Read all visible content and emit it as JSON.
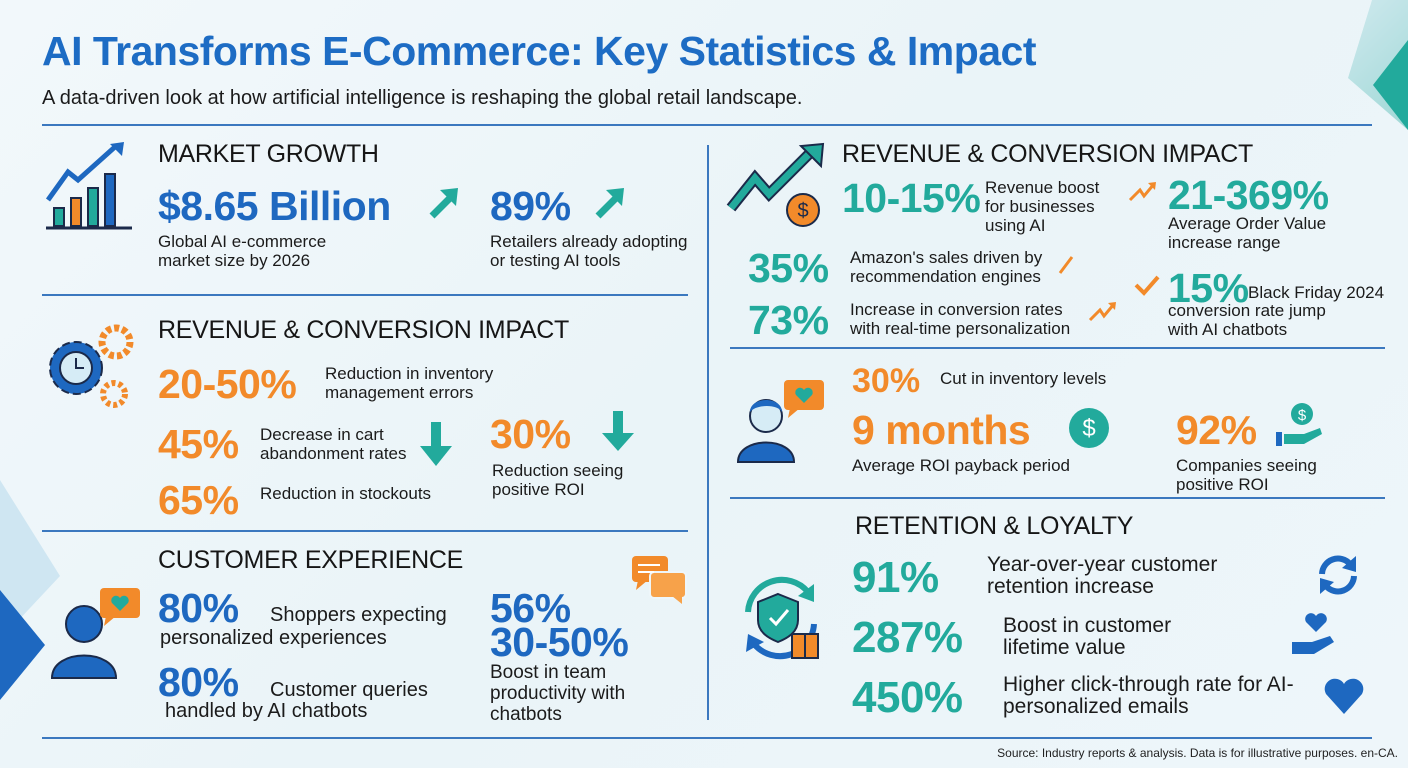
{
  "header": {
    "title": "AI Transforms E-Commerce: Key Statistics & Impact",
    "subtitle": "A data-driven look at how artificial intelligence is reshaping the global retail landscape."
  },
  "market_growth": {
    "heading": "MARKET GROWTH",
    "stats": [
      {
        "value": "$8.65 Billion",
        "desc": "Global AI e-commerce market size by 2026"
      },
      {
        "value": "89%",
        "desc": "Retailers already adopting or testing AI tools"
      }
    ]
  },
  "ops_impact": {
    "heading": "REVENUE & CONVERSION IMPACT",
    "stats": [
      {
        "value": "20-50%",
        "desc": "Reduction in inventory management errors"
      },
      {
        "value": "45%",
        "desc": "Decrease in cart abandonment rates"
      },
      {
        "value": "30%",
        "desc": "Reduction seeing positive ROI"
      },
      {
        "value": "65%",
        "desc": "Reduction in stockouts"
      }
    ]
  },
  "customer_experience": {
    "heading": "CUSTOMER EXPERIENCE",
    "stats": [
      {
        "value": "80%",
        "desc_line1": "Shoppers expecting",
        "desc_line2": "personalized experiences"
      },
      {
        "value": "80%",
        "desc_line1": "Customer queries",
        "desc_line2": "handled by AI chatbots"
      },
      {
        "value": "56%",
        "value2": "30-50%",
        "desc": "Boost in team productivity with chatbots"
      }
    ]
  },
  "revenue_conversion": {
    "heading": "REVENUE & CONVERSION IMPACT",
    "stats": [
      {
        "value": "10-15%",
        "desc": "Revenue boost for businesses using AI"
      },
      {
        "value": "21-369%",
        "desc": "Average Order Value increase range"
      },
      {
        "value": "35%",
        "desc": "Amazon's sales driven by recommendation engines"
      },
      {
        "value": "73%",
        "desc": "Increase in conversion rates with real-time personalization"
      },
      {
        "value": "15%",
        "desc_inline": "Black Friday 2024",
        "desc": "conversion rate jump with AI chatbots"
      }
    ]
  },
  "roi": {
    "stats": [
      {
        "value": "30%",
        "desc": "Cut in inventory levels"
      },
      {
        "value": "9 months",
        "desc": "Average ROI payback period"
      },
      {
        "value": "92%",
        "desc": "Companies seeing positive ROI"
      }
    ]
  },
  "retention": {
    "heading": "RETENTION & LOYALTY",
    "stats": [
      {
        "value": "91%",
        "desc": "Year-over-year customer retention increase"
      },
      {
        "value": "287%",
        "desc": "Boost in customer lifetime value"
      },
      {
        "value": "450%",
        "desc": "Higher click-through rate for AI-personalized emails"
      }
    ]
  },
  "footer": {
    "source": "Source: Industry reports & analysis. Data is for illustrative purposes. en-CA."
  },
  "colors": {
    "blue": "#1e68c0",
    "teal": "#22aa9c",
    "orange": "#f28a2a",
    "divider": "#3b78bf"
  }
}
